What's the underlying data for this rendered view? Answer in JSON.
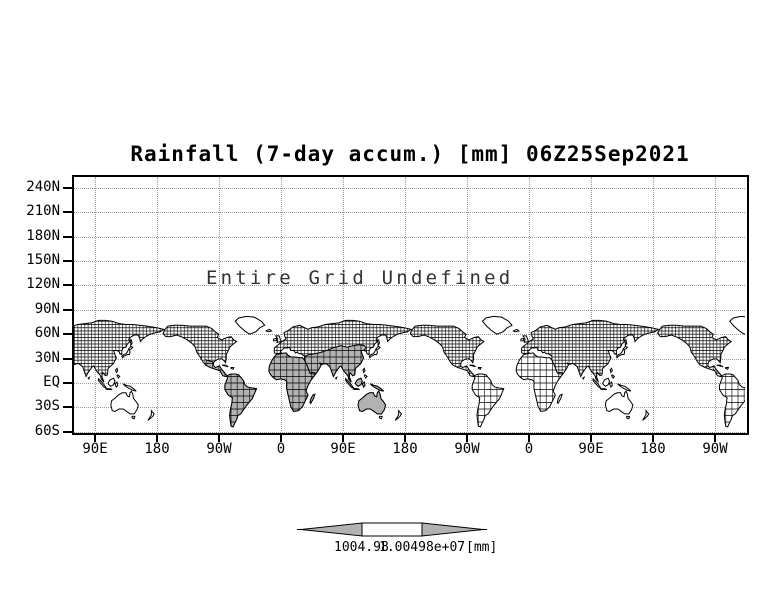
{
  "title": "Rainfall (7-day accum.) [mm] 06Z25Sep2021",
  "overlay_message": "Entire Grid Undefined",
  "y_axis": {
    "labels": [
      "240N",
      "210N",
      "180N",
      "150N",
      "120N",
      "90N",
      "60N",
      "30N",
      "EQ",
      "30S",
      "60S"
    ]
  },
  "x_axis": {
    "labels": [
      "90E",
      "180",
      "90W",
      "0",
      "90E",
      "180",
      "90W",
      "0",
      "90E",
      "180",
      "90W"
    ]
  },
  "colorbar": {
    "left_label": "1004.98",
    "right_label": "1.00498e+07",
    "units": "[mm]",
    "arrow_color": "#b2b2b2"
  },
  "colors": {
    "background": "#ffffff",
    "frame": "#000000",
    "gridline": "#9a9a9a",
    "land_gray": "#b2b2b2",
    "coastline": "#000000",
    "message_text": "#333333"
  },
  "chart_data": {
    "type": "heatmap",
    "title": "Rainfall (7-day accum.) [mm] 06Z25Sep2021",
    "subtitle_overlay": "Entire Grid Undefined",
    "projection": "latlon world map, longitudes wrapped ~3 times",
    "x_tick_labels": [
      "90E",
      "180",
      "90W",
      "0",
      "90E",
      "180",
      "90W",
      "0",
      "90E",
      "180",
      "90W"
    ],
    "y_tick_labels": [
      "240N",
      "210N",
      "180N",
      "150N",
      "120N",
      "90N",
      "60N",
      "30N",
      "EQ",
      "30S",
      "60S"
    ],
    "ylim": [
      "60S",
      "240N"
    ],
    "grid": "dotted gray at every tick",
    "values": null,
    "note": "No data plotted; grid is entirely undefined. Shaded gray landmasses (one longitude cycle: Mexico, South America, Africa, southern Asia, Indonesia, Australia) are map fill, not data.",
    "colorbar": {
      "min_label": "1004.98",
      "max_label": "1.00498e+07",
      "units": "[mm]",
      "legend_position": "bottom center"
    }
  }
}
